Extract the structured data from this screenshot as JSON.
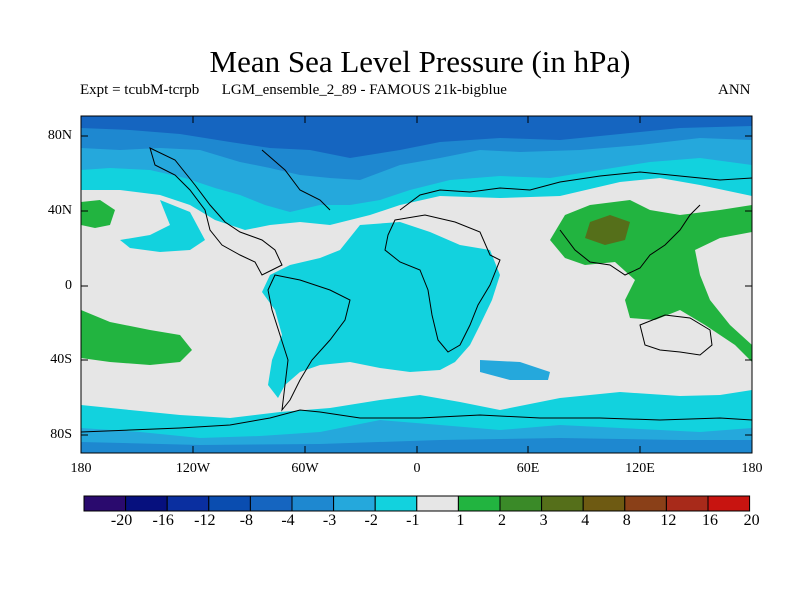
{
  "title": "Mean Sea Level Pressure (in hPa)",
  "subtitle_left": "Expt = tcubM-tcrpb      LGM_ensemble_2_89 - FAMOUS 21k-bigblue",
  "subtitle_right": "ANN",
  "lat_labels": [
    "80N",
    "40N",
    "0",
    "40S",
    "80S"
  ],
  "lon_labels": [
    "180",
    "120W",
    "60W",
    "0",
    "60E",
    "120E",
    "180"
  ],
  "colorbar": {
    "labels": [
      "-20",
      "-16",
      "-12",
      "-8",
      "-4",
      "-3",
      "-2",
      "-1",
      "1",
      "2",
      "3",
      "4",
      "8",
      "12",
      "16",
      "20"
    ],
    "colors": [
      "#2a0a6e",
      "#06107e",
      "#0a2fa0",
      "#0a4db0",
      "#1565c0",
      "#1e88d0",
      "#25a8dc",
      "#12d2de",
      "#e6e6e6",
      "#22b440",
      "#3a8a28",
      "#556f1a",
      "#6e5a12",
      "#8a4018",
      "#a82a1a",
      "#c81410"
    ]
  },
  "palette": {
    "neutral": "#e6e6e6",
    "neg1": "#12d2de",
    "neg2": "#25a8dc",
    "neg3": "#1e88d0",
    "neg4": "#1565c0",
    "neg8": "#0a4db0",
    "pos1": "#22b440",
    "pos2": "#3a8a28",
    "pos3": "#556f1a"
  }
}
